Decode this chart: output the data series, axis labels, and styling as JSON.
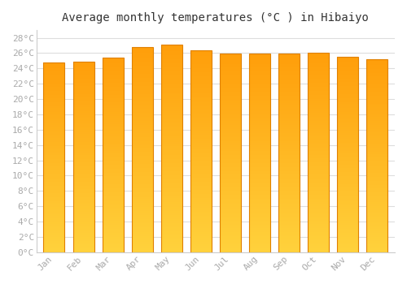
{
  "title": "Average monthly temperatures (°C ) in Hibaiyo",
  "months": [
    "Jan",
    "Feb",
    "Mar",
    "Apr",
    "May",
    "Jun",
    "Jul",
    "Aug",
    "Sep",
    "Oct",
    "Nov",
    "Dec"
  ],
  "values": [
    24.8,
    24.9,
    25.4,
    26.8,
    27.1,
    26.4,
    25.9,
    25.9,
    25.9,
    26.0,
    25.5,
    25.2
  ],
  "bar_color_top": "#FFA010",
  "bar_color_mid": "#FFB830",
  "bar_color_bottom": "#FFCC50",
  "bar_edge_color": "#E08000",
  "ylim": [
    0,
    29
  ],
  "ytick_step": 2,
  "background_color": "#ffffff",
  "grid_color": "#dddddd",
  "title_fontsize": 10,
  "tick_fontsize": 8,
  "font_family": "monospace",
  "tick_color": "#aaaaaa",
  "title_color": "#333333"
}
